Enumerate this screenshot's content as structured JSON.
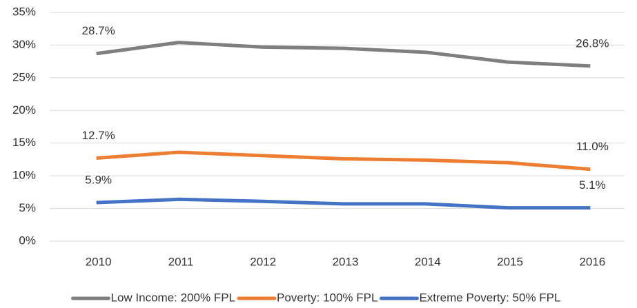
{
  "chart_data": {
    "type": "line",
    "categories": [
      "2010",
      "2011",
      "2012",
      "2013",
      "2014",
      "2015",
      "2016"
    ],
    "series": [
      {
        "name": "Low Income: 200% FPL",
        "color": "#7f7f7f",
        "values": [
          28.7,
          30.4,
          29.7,
          29.5,
          28.9,
          27.4,
          26.8
        ],
        "value_labels": [
          "28.7%",
          null,
          null,
          null,
          null,
          null,
          "26.8%"
        ]
      },
      {
        "name": "Poverty: 100% FPL",
        "color": "#ed7d31",
        "values": [
          12.7,
          13.6,
          13.1,
          12.6,
          12.4,
          12.0,
          11.0
        ],
        "value_labels": [
          "12.7%",
          null,
          null,
          null,
          null,
          null,
          "11.0%"
        ]
      },
      {
        "name": "Extreme Poverty: 50% FPL",
        "color": "#4472c4",
        "values": [
          5.9,
          6.4,
          6.1,
          5.7,
          5.7,
          5.1,
          5.1
        ],
        "value_labels": [
          "5.9%",
          null,
          null,
          null,
          null,
          null,
          "5.1%"
        ]
      }
    ],
    "ylim": [
      0,
      35
    ],
    "yticks": [
      {
        "value": 0,
        "label": "0%"
      },
      {
        "value": 5,
        "label": "5%"
      },
      {
        "value": 10,
        "label": "10%"
      },
      {
        "value": 15,
        "label": "15%"
      },
      {
        "value": 20,
        "label": "20%"
      },
      {
        "value": 25,
        "label": "25%"
      },
      {
        "value": 30,
        "label": "30%"
      },
      {
        "value": 35,
        "label": "35%"
      }
    ],
    "grid": true,
    "legend": "bottom"
  }
}
